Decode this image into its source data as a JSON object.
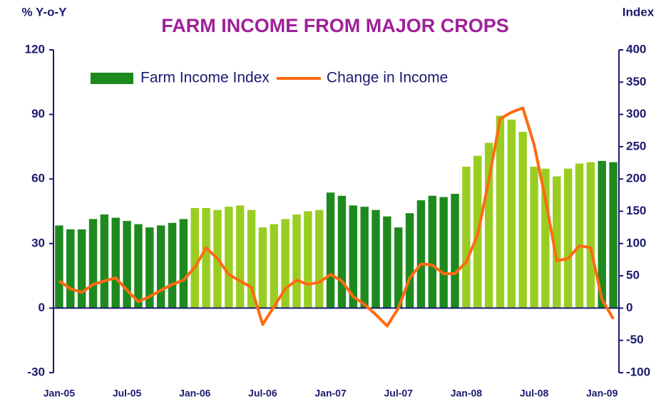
{
  "chart_data": {
    "type": "bar-line",
    "title": "FARM INCOME FROM MAJOR CROPS",
    "y_label": "% Y-o-Y",
    "y2_label": "Index",
    "categories": [
      "Jan-05",
      null,
      null,
      null,
      null,
      null,
      "Jul-05",
      null,
      null,
      null,
      null,
      null,
      "Jan-06",
      null,
      null,
      null,
      null,
      null,
      "Jul-06",
      null,
      null,
      null,
      null,
      null,
      "Jan-07",
      null,
      null,
      null,
      null,
      null,
      "Jul-07",
      null,
      null,
      null,
      null,
      null,
      "Jan-08",
      null,
      null,
      null,
      null,
      null,
      "Jul-08",
      null,
      null,
      null,
      null,
      null,
      "Jan-09",
      null
    ],
    "series": [
      {
        "name": "Farm Income Index",
        "type": "bar",
        "axis": "y2",
        "color": "#1e8a1e",
        "colors": [
          "#1e8a1e",
          "#1e8a1e",
          "#1e8a1e",
          "#1e8a1e",
          "#1e8a1e",
          "#1e8a1e",
          "#1e8a1e",
          "#1e8a1e",
          "#1e8a1e",
          "#1e8a1e",
          "#1e8a1e",
          "#1e8a1e",
          "#9acd22",
          "#9acd22",
          "#9acd22",
          "#9acd22",
          "#9acd22",
          "#9acd22",
          "#9acd22",
          "#9acd22",
          "#9acd22",
          "#9acd22",
          "#9acd22",
          "#9acd22",
          "#1e8a1e",
          "#1e8a1e",
          "#1e8a1e",
          "#1e8a1e",
          "#1e8a1e",
          "#1e8a1e",
          "#1e8a1e",
          "#1e8a1e",
          "#1e8a1e",
          "#1e8a1e",
          "#1e8a1e",
          "#1e8a1e",
          "#9acd22",
          "#9acd22",
          "#9acd22",
          "#9acd22",
          "#9acd22",
          "#9acd22",
          "#9acd22",
          "#9acd22",
          "#9acd22",
          "#9acd22",
          "#9acd22",
          "#9acd22",
          "#1e8a1e",
          "#1e8a1e"
        ],
        "values": [
          128,
          122,
          122,
          138,
          145,
          140,
          135,
          130,
          125,
          128,
          132,
          138,
          155,
          155,
          152,
          157,
          159,
          152,
          125,
          130,
          138,
          145,
          150,
          152,
          179,
          174,
          159,
          157,
          152,
          142,
          125,
          147,
          167,
          174,
          172,
          177,
          219,
          236,
          256,
          298,
          292,
          273,
          219,
          216,
          204,
          216,
          224,
          226,
          228,
          226
        ]
      },
      {
        "name": "Change in Income",
        "type": "line",
        "color": "#ff6a10",
        "values": [
          12.6,
          9,
          7.3,
          11,
          12.6,
          14,
          8.3,
          3,
          5.3,
          8.3,
          11,
          13,
          19,
          28,
          23,
          15.6,
          12.6,
          9.6,
          -7.6,
          0.7,
          9,
          13,
          11,
          12,
          15.6,
          12.6,
          5.3,
          1.7,
          -3,
          -8.3,
          0,
          14,
          20.5,
          20,
          16,
          16,
          21.5,
          34,
          59.6,
          88,
          91,
          93,
          76,
          50.7,
          22,
          23,
          29,
          28,
          4,
          -5
        ]
      }
    ],
    "ylim": [
      -30,
      120
    ],
    "yticks": [
      -30,
      0,
      30,
      60,
      90,
      120
    ],
    "y2lim": [
      -100,
      400
    ],
    "y2ticks": [
      -100,
      -50,
      0,
      50,
      100,
      150,
      200,
      250,
      300,
      350,
      400
    ],
    "legend": "top",
    "grid": false
  }
}
